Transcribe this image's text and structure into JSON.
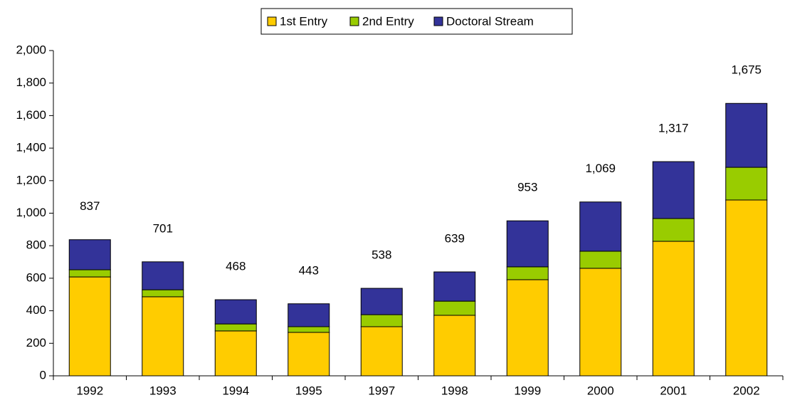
{
  "chart_data": {
    "type": "stacked_bar",
    "categories": [
      "1992",
      "1993",
      "1994",
      "1995",
      "1997",
      "1998",
      "1999",
      "2000",
      "2001",
      "2002"
    ],
    "series": [
      {
        "name": "1st Entry",
        "color": "#ffcc00",
        "values": [
          608,
          486,
          276,
          267,
          302,
          372,
          591,
          661,
          827,
          1081
        ]
      },
      {
        "name": "2nd Entry",
        "color": "#99cc00",
        "values": [
          44,
          43,
          43,
          35,
          74,
          87,
          79,
          105,
          140,
          201
        ]
      },
      {
        "name": "Doctoral Stream",
        "color": "#333399",
        "values": [
          185,
          172,
          149,
          141,
          162,
          180,
          283,
          303,
          350,
          393
        ]
      }
    ],
    "totals": [
      837,
      701,
      468,
      443,
      538,
      639,
      953,
      1069,
      1317,
      1675
    ],
    "total_labels": [
      "837",
      "701",
      "468",
      "443",
      "538",
      "639",
      "953",
      "1,069",
      "1,317",
      "1,675"
    ],
    "ylim": [
      0,
      2000
    ],
    "yticks": [
      0,
      200,
      400,
      600,
      800,
      {
        "value": 1000,
        "label": "1,000"
      },
      {
        "value": 1200,
        "label": "1,200"
      },
      {
        "value": 1400,
        "label": "1,400"
      },
      {
        "value": 1600,
        "label": "1,600"
      },
      {
        "value": 1800,
        "label": "1,800"
      },
      {
        "value": 2000,
        "label": "2,000"
      }
    ],
    "grid": false,
    "legend": "top"
  }
}
